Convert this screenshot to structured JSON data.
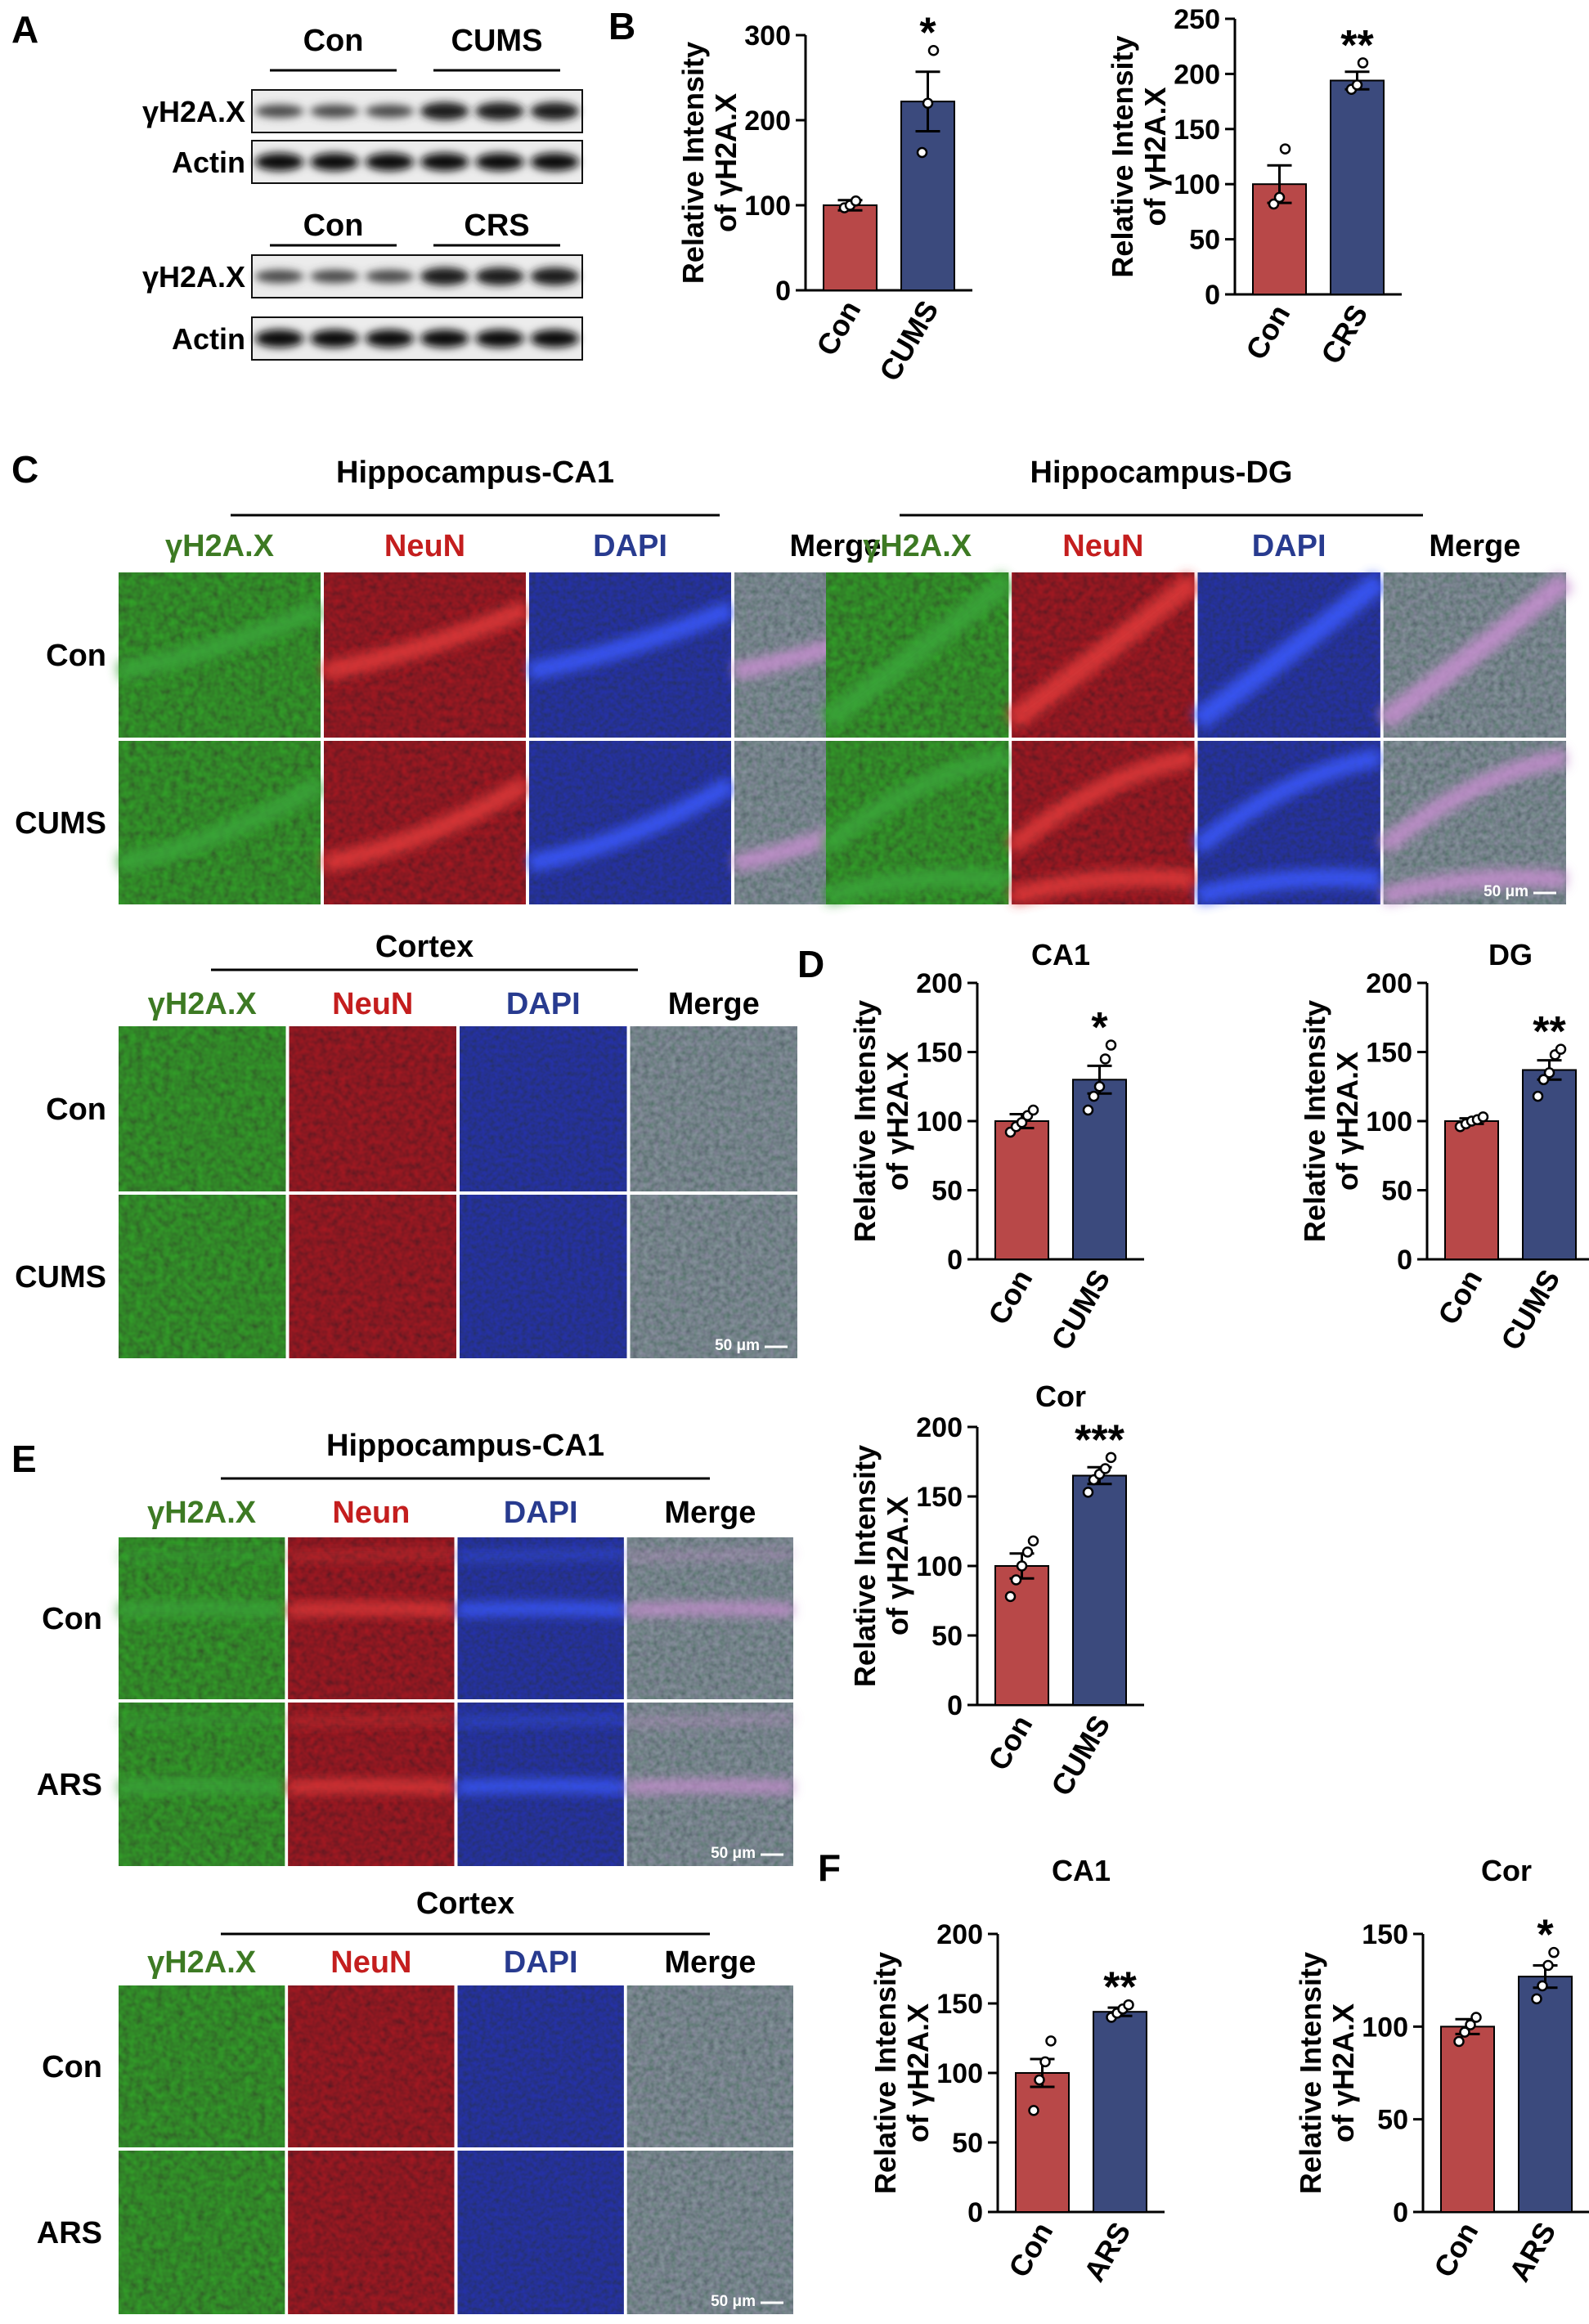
{
  "panel_letters": {
    "A": "A",
    "B": "B",
    "C": "C",
    "D": "D",
    "E": "E",
    "F": "F"
  },
  "colors": {
    "con_bar": "#b84848",
    "treat_bar": "#3b4a7d",
    "green_label": "#3d7a23",
    "red_label": "#c41e1e",
    "blue_label": "#283b8f"
  },
  "western_blots": [
    {
      "groups": [
        "Con",
        "CUMS"
      ],
      "rows": [
        "γH2A.X",
        "Actin"
      ]
    },
    {
      "groups": [
        "Con",
        "CRS"
      ],
      "rows": [
        "γH2A.X",
        "Actin"
      ]
    }
  ],
  "image_panels": [
    {
      "id": "c-ca1",
      "title": "Hippocampus-CA1",
      "channels": [
        "γH2A.X",
        "NeuN",
        "DAPI",
        "Merge"
      ],
      "rows": [
        "Con",
        "CUMS"
      ],
      "scale_bar": "50 μm"
    },
    {
      "id": "c-dg",
      "title": "Hippocampus-DG",
      "channels": [
        "γH2A.X",
        "NeuN",
        "DAPI",
        "Merge"
      ],
      "rows": [],
      "scale_bar": "50 μm"
    },
    {
      "id": "c-cortex",
      "title": "Cortex",
      "channels": [
        "γH2A.X",
        "NeuN",
        "DAPI",
        "Merge"
      ],
      "rows": [
        "Con",
        "CUMS"
      ],
      "scale_bar": "50 μm"
    },
    {
      "id": "e-ca1",
      "title": "Hippocampus-CA1",
      "channels": [
        "γH2A.X",
        "Neun",
        "DAPI",
        "Merge"
      ],
      "rows": [
        "Con",
        "ARS"
      ],
      "scale_bar": "50 μm"
    },
    {
      "id": "e-cortex",
      "title": "Cortex",
      "channels": [
        "γH2A.X",
        "NeuN",
        "DAPI",
        "Merge"
      ],
      "rows": [
        "Con",
        "ARS"
      ],
      "scale_bar": "50 μm"
    }
  ],
  "chart_data": [
    {
      "id": "b1",
      "type": "bar",
      "title": "",
      "ylabel_lines": [
        "Relative Intensity",
        "of γH2A.X"
      ],
      "categories": [
        "Con",
        "CUMS"
      ],
      "values": [
        100,
        222
      ],
      "errors": [
        6,
        35
      ],
      "points": [
        [
          97,
          100,
          105
        ],
        [
          162,
          220,
          282
        ]
      ],
      "ylim": [
        0,
        300
      ],
      "yticks": [
        0,
        100,
        200,
        300
      ],
      "significance": "*"
    },
    {
      "id": "b2",
      "type": "bar",
      "title": "",
      "ylabel_lines": [
        "Relative Intensity",
        "of γH2A.X"
      ],
      "categories": [
        "Con",
        "CRS"
      ],
      "values": [
        100,
        194
      ],
      "errors": [
        17,
        8
      ],
      "points": [
        [
          82,
          88,
          132
        ],
        [
          186,
          190,
          210
        ]
      ],
      "ylim": [
        0,
        250
      ],
      "yticks": [
        0,
        50,
        100,
        150,
        200,
        250
      ],
      "significance": "**"
    },
    {
      "id": "d1",
      "type": "bar",
      "title": "CA1",
      "ylabel_lines": [
        "Relative Intensity",
        "of γH2A.X"
      ],
      "categories": [
        "Con",
        "CUMS"
      ],
      "values": [
        100,
        130
      ],
      "errors": [
        5,
        10
      ],
      "points": [
        [
          92,
          96,
          99,
          104,
          108
        ],
        [
          108,
          118,
          125,
          145,
          155
        ]
      ],
      "ylim": [
        0,
        200
      ],
      "yticks": [
        0,
        50,
        100,
        150,
        200
      ],
      "significance": "*"
    },
    {
      "id": "d2",
      "type": "bar",
      "title": "DG",
      "ylabel_lines": [
        "Relative Intensity",
        "of γH2A.X"
      ],
      "categories": [
        "Con",
        "CUMS"
      ],
      "values": [
        100,
        137
      ],
      "errors": [
        2,
        7
      ],
      "points": [
        [
          96,
          98,
          100,
          101,
          103
        ],
        [
          118,
          130,
          135,
          148,
          152
        ]
      ],
      "ylim": [
        0,
        200
      ],
      "yticks": [
        0,
        50,
        100,
        150,
        200
      ],
      "significance": "**"
    },
    {
      "id": "d3",
      "type": "bar",
      "title": "Cor",
      "ylabel_lines": [
        "Relative Intensity",
        "of γH2A.X"
      ],
      "categories": [
        "Con",
        "CUMS"
      ],
      "values": [
        100,
        165
      ],
      "errors": [
        9,
        6
      ],
      "points": [
        [
          78,
          90,
          100,
          110,
          118
        ],
        [
          153,
          162,
          166,
          170,
          178
        ]
      ],
      "ylim": [
        0,
        200
      ],
      "yticks": [
        0,
        50,
        100,
        150,
        200
      ],
      "significance": "***"
    },
    {
      "id": "f1",
      "type": "bar",
      "title": "CA1",
      "ylabel_lines": [
        "Relative Intensity",
        "of γH2A.X"
      ],
      "categories": [
        "Con",
        "ARS"
      ],
      "values": [
        100,
        144
      ],
      "errors": [
        10,
        3
      ],
      "points": [
        [
          73,
          95,
          108,
          123
        ],
        [
          140,
          143,
          146,
          149
        ]
      ],
      "ylim": [
        0,
        200
      ],
      "yticks": [
        0,
        50,
        100,
        150,
        200
      ],
      "significance": "**"
    },
    {
      "id": "f2",
      "type": "bar",
      "title": "Cor",
      "ylabel_lines": [
        "Relative Intensity",
        "of γH2A.X"
      ],
      "categories": [
        "Con",
        "ARS"
      ],
      "values": [
        100,
        127
      ],
      "errors": [
        4,
        6
      ],
      "points": [
        [
          92,
          97,
          101,
          105
        ],
        [
          115,
          122,
          133,
          140
        ]
      ],
      "ylim": [
        0,
        150
      ],
      "yticks": [
        0,
        50,
        100,
        150
      ],
      "significance": "*"
    }
  ]
}
